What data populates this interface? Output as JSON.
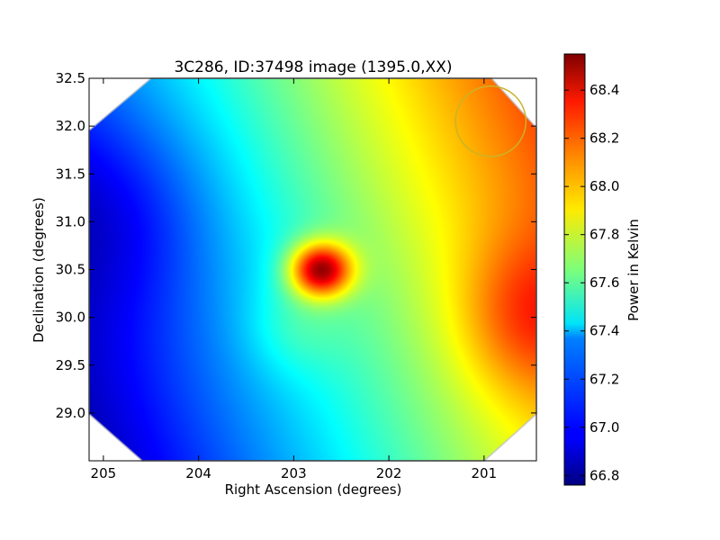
{
  "chart_data": {
    "type": "heatmap",
    "title": "3C286, ID:37498 image (1395.0,XX)",
    "xlabel": "Right Ascension (degrees)",
    "ylabel": "Declination (degrees)",
    "xlim": [
      205.15,
      200.45
    ],
    "ylim": [
      28.5,
      32.5
    ],
    "x_ticks": [
      {
        "value": 205,
        "label": "205"
      },
      {
        "value": 204,
        "label": "204"
      },
      {
        "value": 203,
        "label": "203"
      },
      {
        "value": 202,
        "label": "202"
      },
      {
        "value": 201,
        "label": "201"
      }
    ],
    "y_ticks": [
      {
        "value": 29.0,
        "label": "29.0"
      },
      {
        "value": 29.5,
        "label": "29.5"
      },
      {
        "value": 30.0,
        "label": "30.0"
      },
      {
        "value": 30.5,
        "label": "30.5"
      },
      {
        "value": 31.0,
        "label": "31.0"
      },
      {
        "value": 31.5,
        "label": "31.5"
      },
      {
        "value": 32.0,
        "label": "32.0"
      },
      {
        "value": 32.5,
        "label": "32.5"
      }
    ],
    "colormap": "jet",
    "colorbar": {
      "label": "Power in Kelvin",
      "range": [
        66.76,
        68.55
      ],
      "ticks": [
        {
          "value": 66.8,
          "label": "66.8"
        },
        {
          "value": 67.0,
          "label": "67.0"
        },
        {
          "value": 67.2,
          "label": "67.2"
        },
        {
          "value": 67.4,
          "label": "67.4"
        },
        {
          "value": 67.6,
          "label": "67.6"
        },
        {
          "value": 67.8,
          "label": "67.8"
        },
        {
          "value": 68.0,
          "label": "68.0"
        },
        {
          "value": 68.2,
          "label": "68.2"
        },
        {
          "value": 68.4,
          "label": "68.4"
        }
      ]
    },
    "features": [
      {
        "name": "peak",
        "ra": 202.7,
        "dec": 30.5,
        "value": 68.5
      },
      {
        "name": "minimum",
        "ra": 204.9,
        "dec": 31.1,
        "value": 66.78
      },
      {
        "name": "warm-region-east",
        "ra": 200.6,
        "dec": 30.0,
        "value": 68.25
      }
    ],
    "beam_circle": {
      "ra": 200.93,
      "dec": 32.05,
      "radius_deg": 0.37,
      "color": "#c8b428"
    },
    "grid": false
  }
}
